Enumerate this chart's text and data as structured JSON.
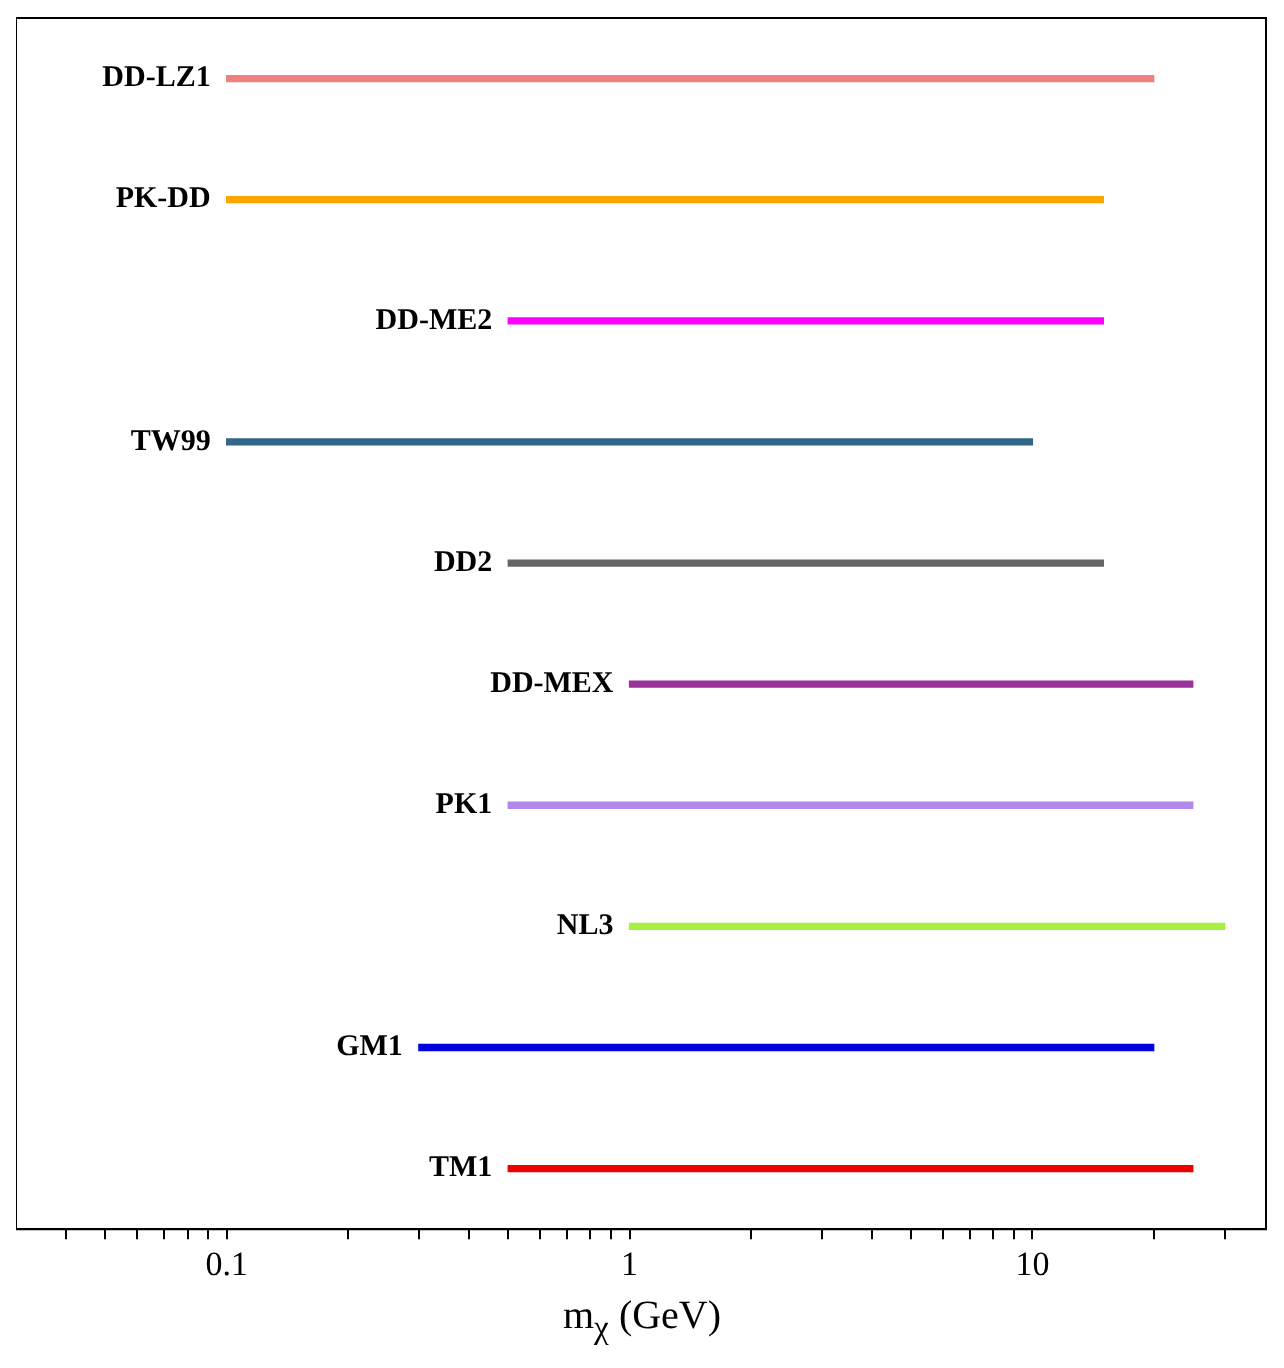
{
  "chart_data": {
    "type": "bar",
    "orientation": "horizontal",
    "log": "x",
    "xlabel": "m$_{χ}$ (GeV)",
    "categories": [
      "DD-LZ1",
      "PK-DD",
      "DD-ME2",
      "TW99",
      "DD2",
      "DD-MEX",
      "PK1",
      "NL3",
      "GM1",
      "TM1"
    ],
    "base": [
      0.1,
      0.1,
      0.5,
      0.1,
      0.5,
      1,
      0.5,
      1,
      0.3,
      0.5
    ],
    "values": [
      19.9,
      14.9,
      14.5,
      9.9,
      14.5,
      24,
      24.5,
      29,
      19.7,
      24.5
    ],
    "colors": [
      "#f08080",
      "#ffa500",
      "#ff00ff",
      "#336688",
      "#666666",
      "#993399",
      "#b388eb",
      "#a8f040",
      "#0000dd",
      "#ee0000"
    ],
    "xlim": [
      0.03,
      38
    ],
    "xticks": [
      {
        "value": 0.04,
        "label": null
      },
      {
        "value": 0.05,
        "label": null
      },
      {
        "value": 0.06,
        "label": null
      },
      {
        "value": 0.07,
        "label": null
      },
      {
        "value": 0.08,
        "label": null
      },
      {
        "value": 0.09,
        "label": null
      },
      0.1,
      {
        "value": 0.2,
        "label": null
      },
      {
        "value": 0.3,
        "label": null
      },
      {
        "value": 0.4,
        "label": null
      },
      {
        "value": 0.5,
        "label": null
      },
      {
        "value": 0.6,
        "label": null
      },
      {
        "value": 0.7,
        "label": null
      },
      {
        "value": 0.8,
        "label": null
      },
      {
        "value": 0.9,
        "label": null
      },
      1,
      {
        "value": 2,
        "label": null
      },
      {
        "value": 3,
        "label": null
      },
      {
        "value": 4,
        "label": null
      },
      {
        "value": 5,
        "label": null
      },
      {
        "value": 6,
        "label": null
      },
      {
        "value": 7,
        "label": null
      },
      {
        "value": 8,
        "label": null
      },
      {
        "value": 9,
        "label": null
      },
      10,
      {
        "value": 20,
        "label": null
      },
      {
        "value": 30,
        "label": null
      }
    ],
    "grid": false,
    "legend": false,
    "tick_labels": "x"
  }
}
